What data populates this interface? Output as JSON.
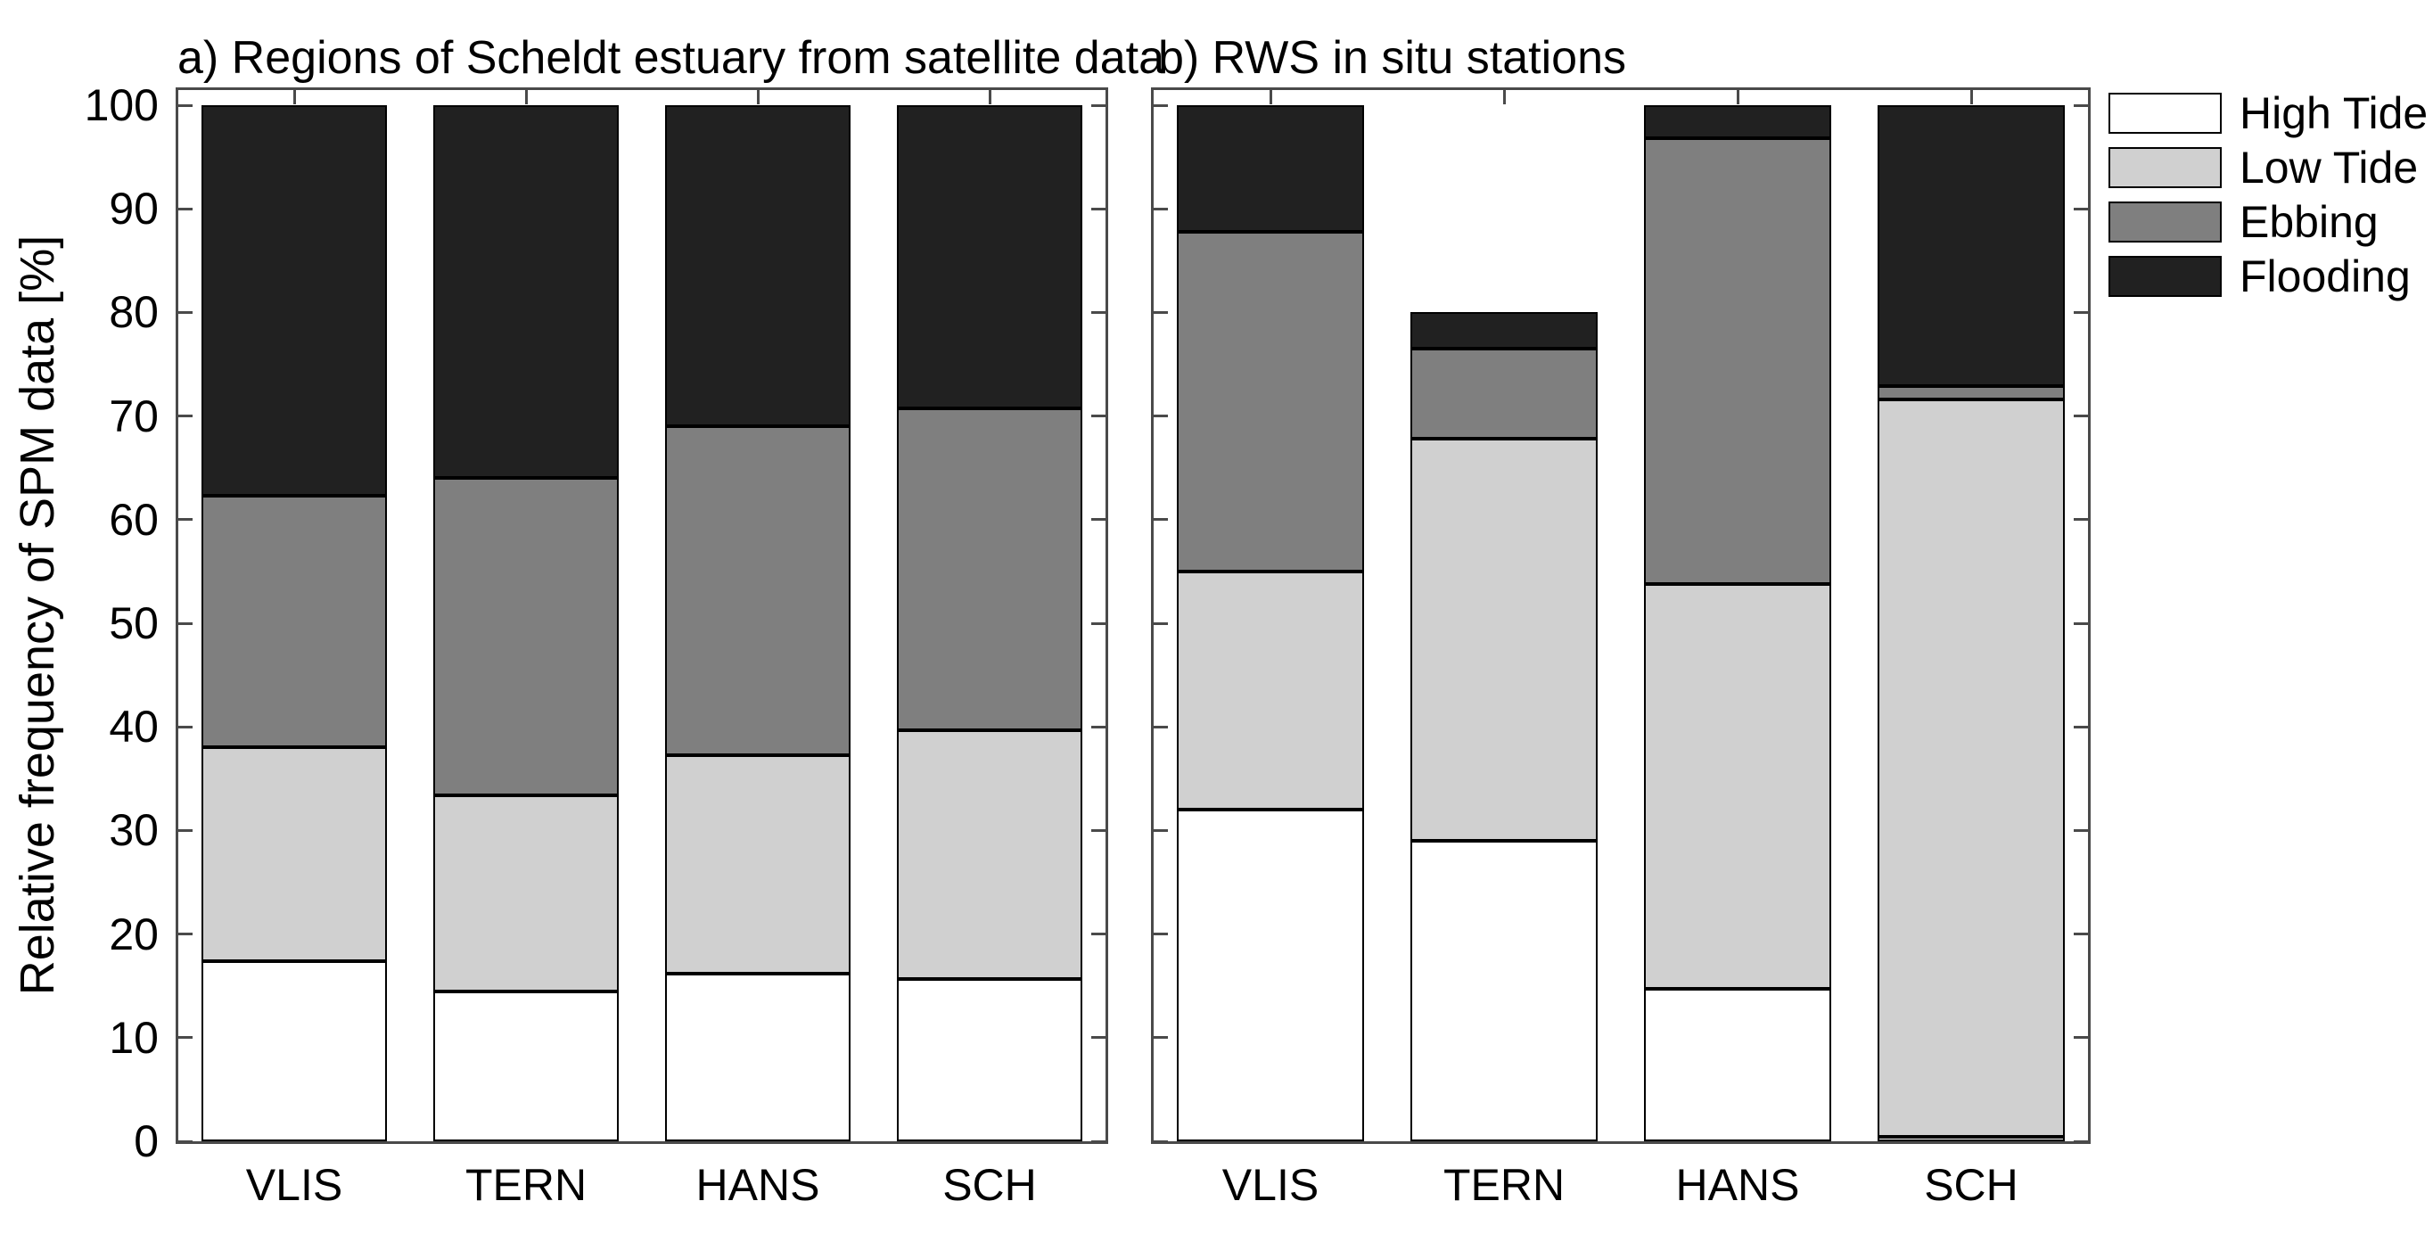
{
  "figure": {
    "background": "#ffffff"
  },
  "y_axis": {
    "label": "Relative frequency of SPM data [%]",
    "ticks": [
      0,
      10,
      20,
      30,
      40,
      50,
      60,
      70,
      80,
      90,
      100
    ]
  },
  "x_categories": [
    "VLIS",
    "TERN",
    "HANS",
    "SCH"
  ],
  "legend": {
    "position": "top-right",
    "items": [
      {
        "label": "High Tide",
        "color": "#ffffff"
      },
      {
        "label": "Low Tide",
        "color": "#d0d0d0"
      },
      {
        "label": "Ebbing",
        "color": "#7f7f7f"
      },
      {
        "label": "Flooding",
        "color": "#212121"
      }
    ]
  },
  "chart_data": [
    {
      "type": "bar",
      "stacked": true,
      "panel": "a",
      "title": "a) Regions of Scheldt estuary from satellite data",
      "categories": [
        "VLIS",
        "TERN",
        "HANS",
        "SCH"
      ],
      "ylabel": "Relative frequency of SPM data [%]",
      "ylim": [
        0,
        100
      ],
      "grid": false,
      "legend_position": "outside-top-right",
      "series": [
        {
          "name": "High Tide",
          "color": "#ffffff",
          "values": [
            17.4,
            14.5,
            16.2,
            15.7
          ]
        },
        {
          "name": "Low Tide",
          "color": "#d0d0d0",
          "values": [
            20.6,
            18.9,
            21.1,
            24.0
          ]
        },
        {
          "name": "Ebbing",
          "color": "#7f7f7f",
          "values": [
            24.3,
            30.6,
            31.7,
            31.0
          ]
        },
        {
          "name": "Flooding",
          "color": "#212121",
          "values": [
            37.7,
            36.0,
            31.0,
            29.3
          ]
        }
      ]
    },
    {
      "type": "bar",
      "stacked": true,
      "panel": "b",
      "title": "b) RWS in situ stations",
      "categories": [
        "VLIS",
        "TERN",
        "HANS",
        "SCH"
      ],
      "ylim": [
        0,
        100
      ],
      "grid": false,
      "series": [
        {
          "name": "High Tide",
          "color": "#ffffff",
          "values": [
            32.0,
            29.0,
            14.7,
            0.4
          ]
        },
        {
          "name": "Low Tide",
          "color": "#d0d0d0",
          "values": [
            23.0,
            38.8,
            39.1,
            71.2
          ]
        },
        {
          "name": "Ebbing",
          "color": "#7f7f7f",
          "values": [
            32.8,
            8.7,
            43.0,
            1.3
          ]
        },
        {
          "name": "Flooding",
          "color": "#212121",
          "values": [
            12.2,
            3.5,
            3.2,
            27.1
          ]
        }
      ]
    }
  ]
}
